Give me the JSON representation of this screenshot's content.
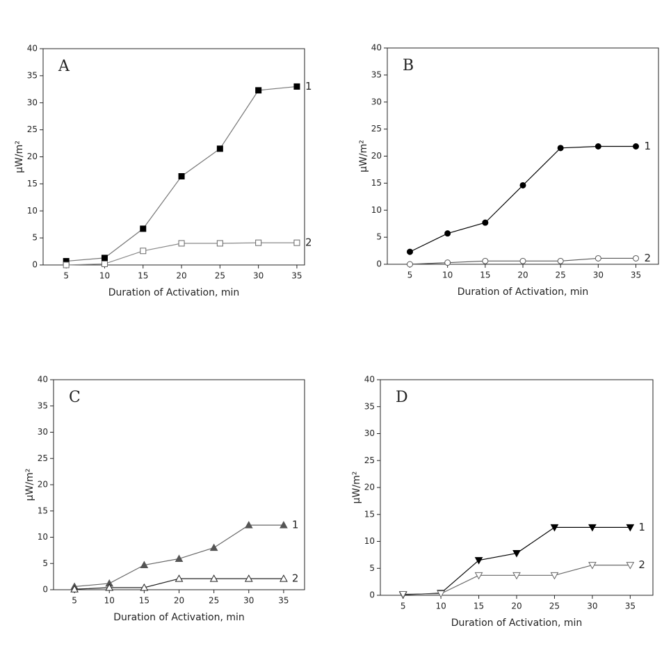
{
  "chart_data": [
    {
      "type": "line",
      "title": "A",
      "xlabel": "Duration of Activation, min",
      "ylabel": "μW/m²",
      "x": [
        5,
        10,
        15,
        20,
        25,
        30,
        35
      ],
      "xlim": [
        2,
        36
      ],
      "xticks": [
        5,
        10,
        15,
        20,
        25,
        30,
        35
      ],
      "ylim": [
        0,
        40
      ],
      "yticks": [
        0,
        5,
        10,
        15,
        20,
        25,
        30,
        35,
        40
      ],
      "marker": "square",
      "series": [
        {
          "name": "1",
          "color": "#000000",
          "line_color": "#777777",
          "filled": true,
          "values": [
            0.7,
            1.3,
            6.7,
            16.4,
            21.5,
            32.3,
            33.0
          ]
        },
        {
          "name": "2",
          "color": "#666666",
          "line_color": "#888888",
          "filled": false,
          "values": [
            0,
            0.2,
            2.6,
            4.0,
            4.0,
            4.1,
            4.1
          ]
        }
      ]
    },
    {
      "type": "line",
      "title": "B",
      "xlabel": "Duration of Activation, min",
      "ylabel": "μW/m²",
      "x": [
        5,
        10,
        15,
        20,
        25,
        30,
        35
      ],
      "xlim": [
        2,
        38
      ],
      "xticks": [
        5,
        10,
        15,
        20,
        25,
        30,
        35
      ],
      "ylim": [
        0,
        40
      ],
      "yticks": [
        0,
        5,
        10,
        15,
        20,
        25,
        30,
        35,
        40
      ],
      "marker": "circle",
      "series": [
        {
          "name": "1",
          "color": "#000000",
          "line_color": "#000000",
          "filled": true,
          "values": [
            2.3,
            5.7,
            7.7,
            14.6,
            21.5,
            21.8,
            21.8
          ]
        },
        {
          "name": "2",
          "color": "#555555",
          "line_color": "#555555",
          "filled": false,
          "values": [
            0,
            0.3,
            0.6,
            0.6,
            0.6,
            1.1,
            1.1
          ]
        }
      ]
    },
    {
      "type": "line",
      "title": "C",
      "xlabel": "Duration of Activation, min",
      "ylabel": "μW/m²",
      "x": [
        5,
        10,
        15,
        20,
        25,
        30,
        35
      ],
      "xlim": [
        2,
        38
      ],
      "xticks": [
        5,
        10,
        15,
        20,
        25,
        30,
        35
      ],
      "ylim": [
        0,
        40
      ],
      "yticks": [
        0,
        5,
        10,
        15,
        20,
        25,
        30,
        35,
        40
      ],
      "marker": "triangle",
      "series": [
        {
          "name": "1",
          "color": "#555555",
          "line_color": "#666666",
          "filled": true,
          "values": [
            0.6,
            1.2,
            4.7,
            5.9,
            8.0,
            12.3,
            12.3
          ]
        },
        {
          "name": "2",
          "color": "#222222",
          "line_color": "#222222",
          "filled": false,
          "values": [
            0.1,
            0.4,
            0.4,
            2.1,
            2.1,
            2.1,
            2.1
          ]
        }
      ]
    },
    {
      "type": "line",
      "title": "D",
      "xlabel": "Duration of Activation, min",
      "ylabel": "μW/m²",
      "x": [
        5,
        10,
        15,
        20,
        25,
        30,
        35
      ],
      "xlim": [
        2,
        38
      ],
      "xticks": [
        5,
        10,
        15,
        20,
        25,
        30,
        35
      ],
      "ylim": [
        0,
        40
      ],
      "yticks": [
        0,
        5,
        10,
        15,
        20,
        25,
        30,
        35,
        40
      ],
      "marker": "triangle-down",
      "series": [
        {
          "name": "1",
          "color": "#000000",
          "line_color": "#000000",
          "filled": true,
          "values": [
            0.1,
            0.4,
            6.5,
            7.8,
            12.6,
            12.6,
            12.6
          ]
        },
        {
          "name": "2",
          "color": "#666666",
          "line_color": "#666666",
          "filled": false,
          "values": [
            0.2,
            0.3,
            3.7,
            3.7,
            3.7,
            5.6,
            5.6
          ]
        }
      ]
    }
  ]
}
